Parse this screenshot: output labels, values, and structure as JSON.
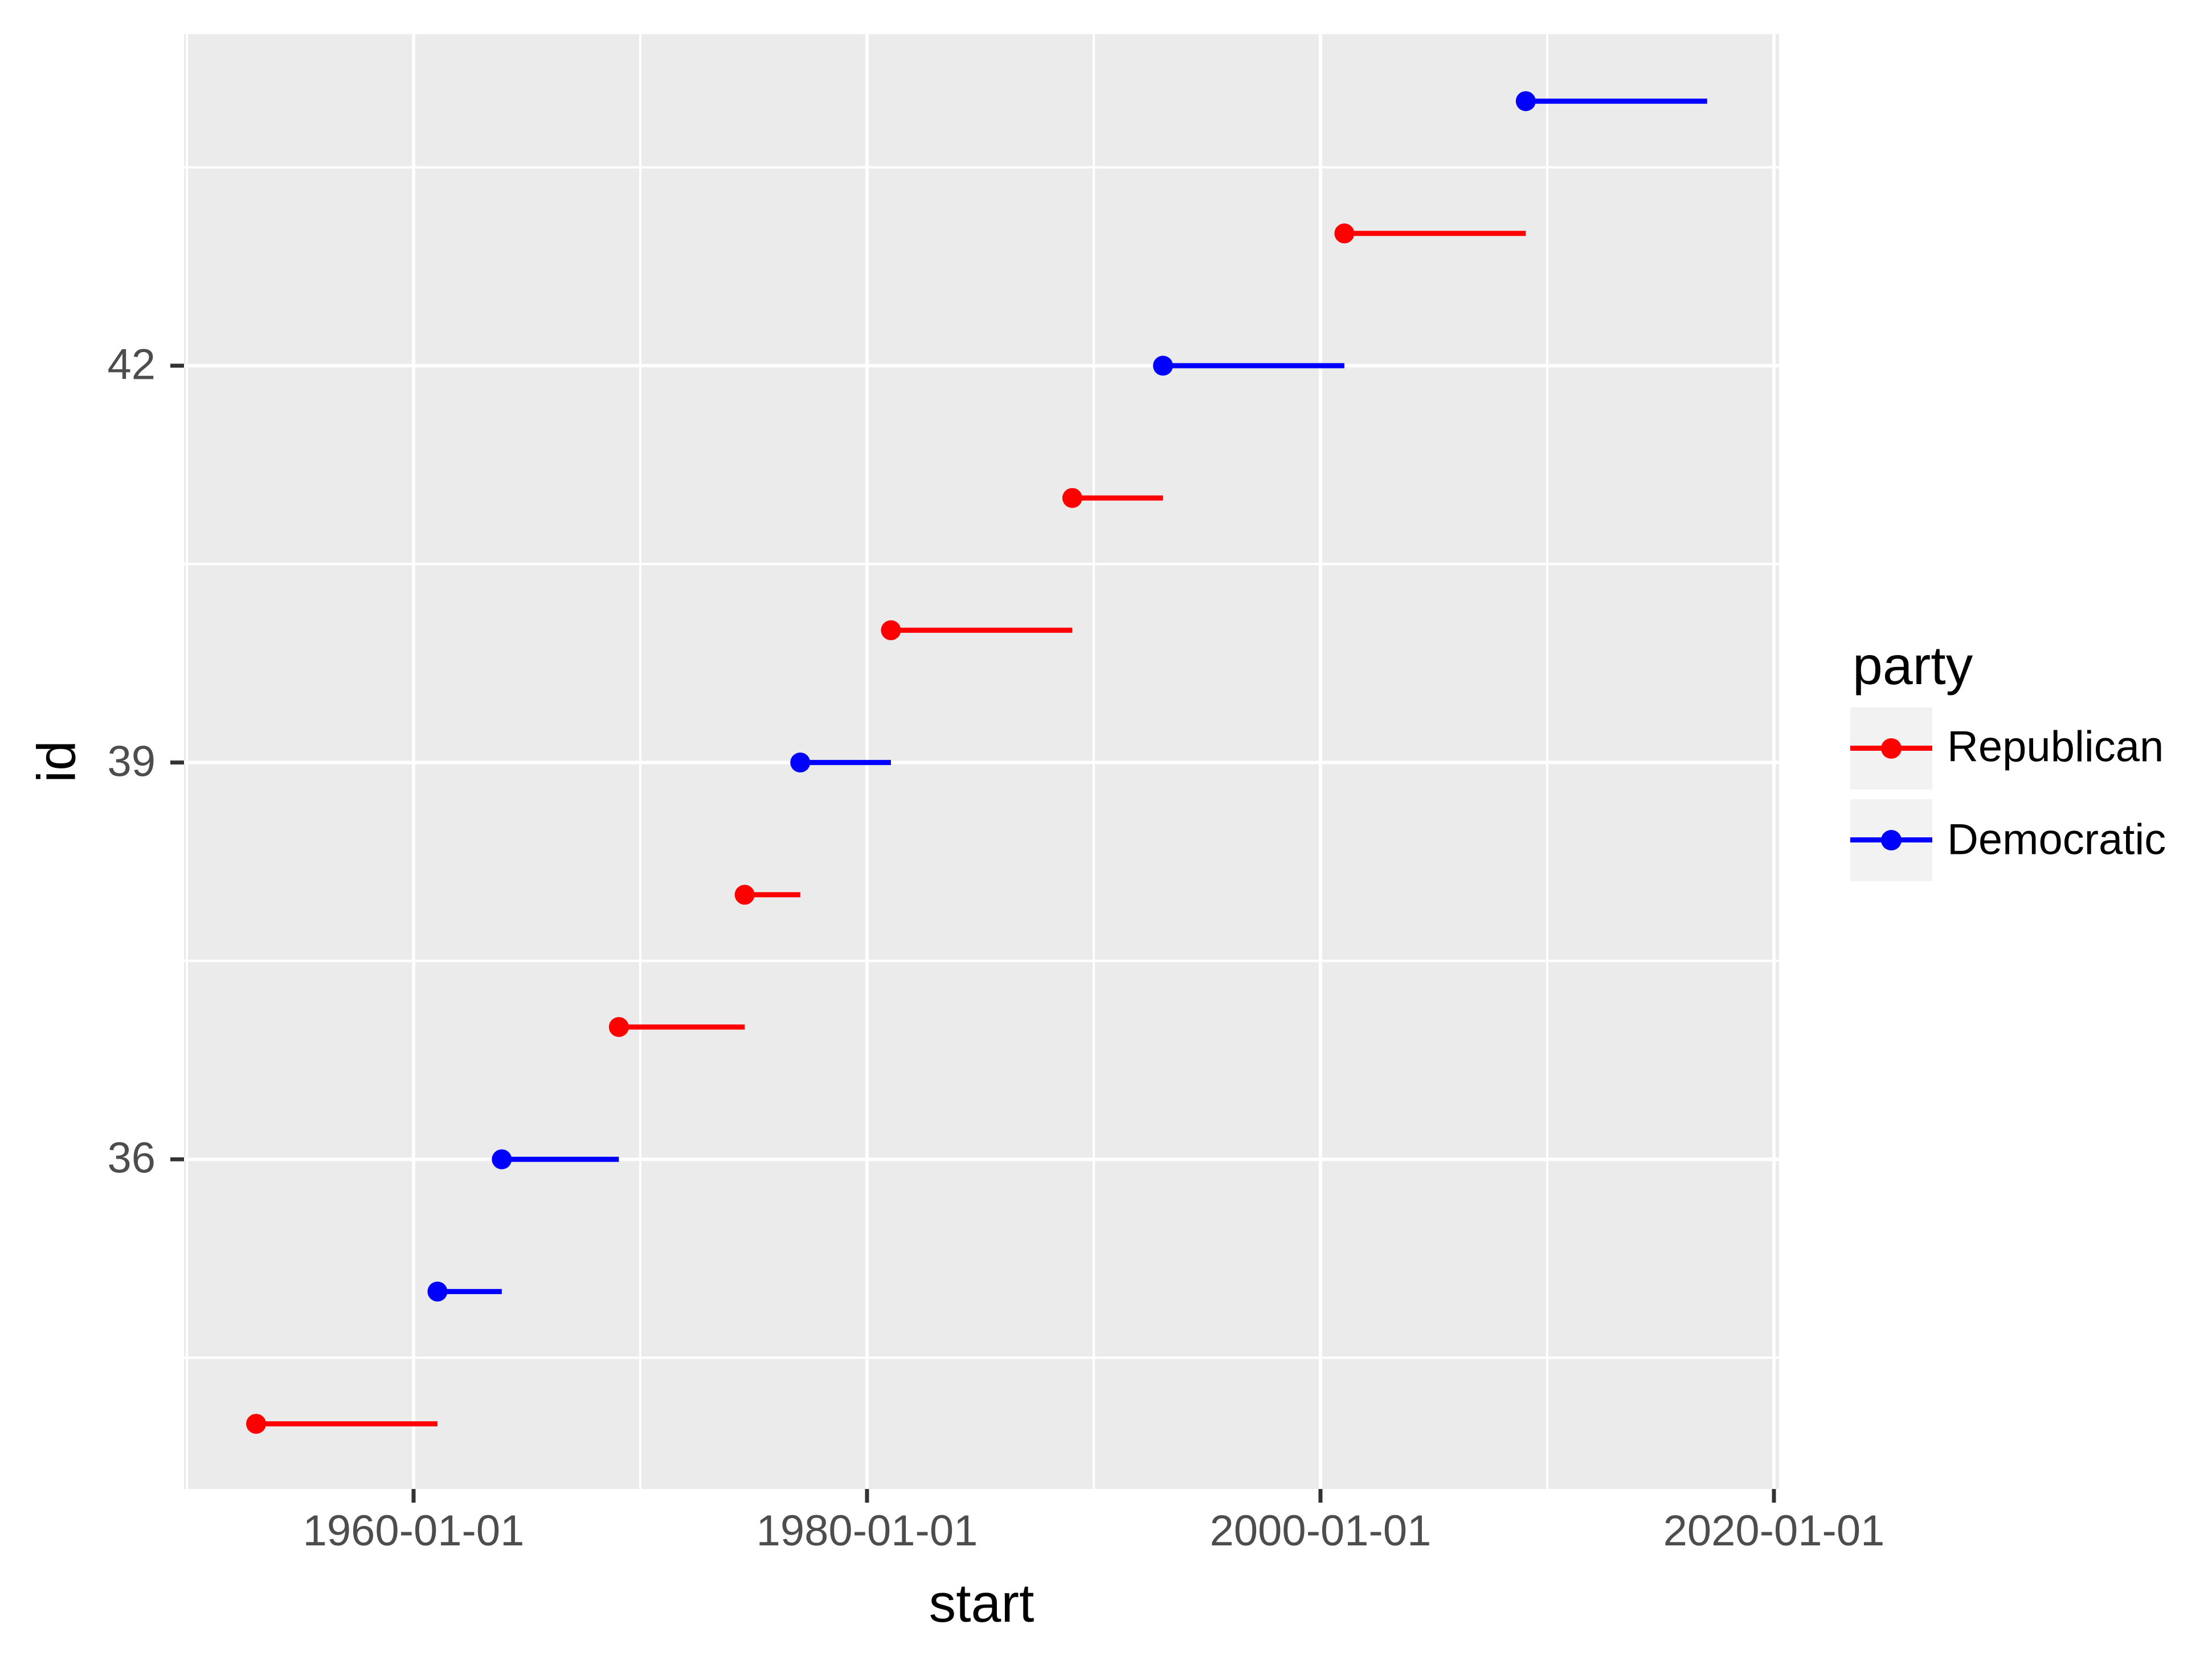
{
  "legend": {
    "title": "party",
    "position": "right",
    "items": [
      {
        "label": "Republican",
        "color": "#FF0000"
      },
      {
        "label": "Democratic",
        "color": "#0000FF"
      }
    ]
  },
  "colors": {
    "republican": "#FF0000",
    "democratic": "#0000FF",
    "panel_background": "#EBEBEB",
    "gridline": "#FFFFFF",
    "tick_label": "#4D4D4D",
    "tick_mark": "#333333",
    "axis_title": "#000000",
    "legend_key_background": "#F2F2F2",
    "page_background": "#FFFFFF"
  },
  "chart_data": {
    "type": "scatter",
    "mark": "point-with-segment-to-end-date",
    "title": "",
    "xlabel": "start",
    "ylabel": "id",
    "x_axis": {
      "label": "start",
      "tick_labels": [
        "1960-01-01",
        "1980-01-01",
        "2000-01-01",
        "2020-01-01"
      ],
      "minor_gridlines": [
        "1950-01-01",
        "1970-01-01",
        "1990-01-01",
        "2010-01-01"
      ],
      "range": [
        "1949-11-10",
        "2020-03-14"
      ]
    },
    "y_axis": {
      "label": "id",
      "ticks": [
        42,
        39,
        36
      ],
      "tick_labels": [
        "42",
        "39",
        "36"
      ],
      "minor_gridlines": [
        43.5,
        40.5,
        37.5,
        34.5
      ],
      "range": [
        33.5,
        44.5
      ]
    },
    "grid": "major and minor, white on gray panel",
    "legend_position": "right",
    "rows": [
      {
        "id": 34,
        "party": "Republican",
        "start": "1953-01-20",
        "end": "1961-01-20"
      },
      {
        "id": 35,
        "party": "Democratic",
        "start": "1961-01-20",
        "end": "1963-11-22"
      },
      {
        "id": 36,
        "party": "Democratic",
        "start": "1963-11-22",
        "end": "1969-01-20"
      },
      {
        "id": 37,
        "party": "Republican",
        "start": "1969-01-20",
        "end": "1974-08-09"
      },
      {
        "id": 38,
        "party": "Republican",
        "start": "1974-08-09",
        "end": "1977-01-20"
      },
      {
        "id": 39,
        "party": "Democratic",
        "start": "1977-01-20",
        "end": "1981-01-20"
      },
      {
        "id": 40,
        "party": "Republican",
        "start": "1981-01-20",
        "end": "1989-01-20"
      },
      {
        "id": 41,
        "party": "Republican",
        "start": "1989-01-20",
        "end": "1993-01-20"
      },
      {
        "id": 42,
        "party": "Democratic",
        "start": "1993-01-20",
        "end": "2001-01-20"
      },
      {
        "id": 43,
        "party": "Republican",
        "start": "2001-01-20",
        "end": "2009-01-20"
      },
      {
        "id": 44,
        "party": "Democratic",
        "start": "2009-01-20",
        "end": "2017-01-20"
      }
    ]
  }
}
